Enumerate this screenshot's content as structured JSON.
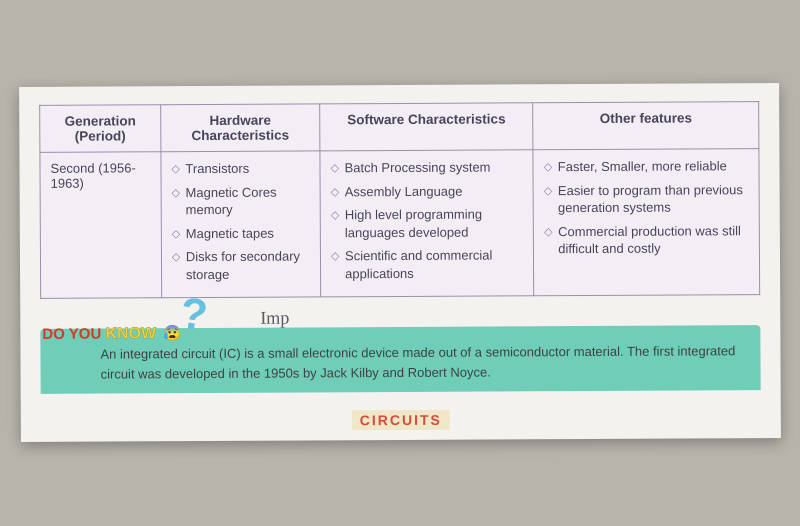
{
  "table": {
    "headers": [
      "Generation (Period)",
      "Hardware Characteristics",
      "Software Characteristics",
      "Other features"
    ],
    "row": {
      "generation": "Second (1956-1963)",
      "hardware": [
        "Transistors",
        "Magnetic Cores memory",
        "Magnetic tapes",
        "Disks for secondary storage"
      ],
      "software": [
        "Batch Processing system",
        "Assembly Language",
        "High level programming languages developed",
        "Scientific and commercial applications"
      ],
      "other": [
        "Faster, Smaller, more reliable",
        "Easier to program than previous generation systems",
        "Commercial production was still difficult and costly"
      ]
    },
    "bg_color": "#f3eef6",
    "border_color": "#9a8fa8",
    "text_color": "#4a4458",
    "bullet_glyph": "◇"
  },
  "knowbox": {
    "qmark": "?",
    "handwriting": "Imp",
    "doyou": "DO YOU",
    "know": "KNOW",
    "emoji": "😰",
    "fact": "An integrated circuit (IC) is a small electronic device made out of a semiconductor material. The first integrated circuit was developed in the 1950s by Jack Kilby and Robert Noyce.",
    "bg_color": "#6fcdb8"
  },
  "footer": "CIRCUITS"
}
